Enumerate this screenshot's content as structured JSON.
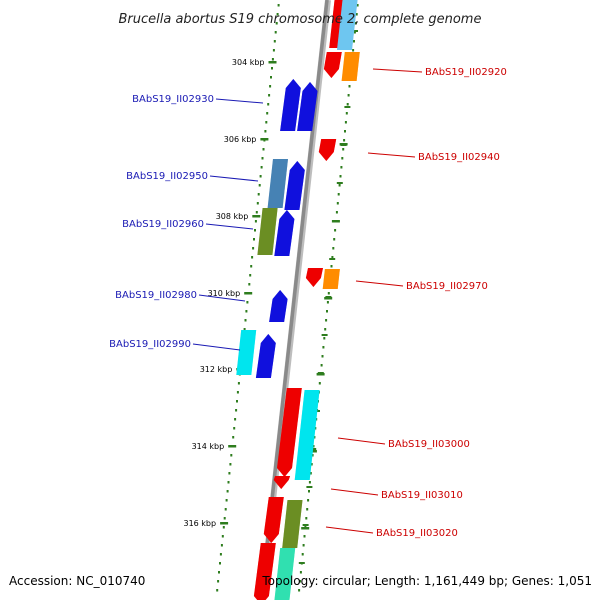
{
  "title": "Brucella abortus S19 chromosome 2, complete genome",
  "footer": {
    "accession": "Accession: NC_010740",
    "topology": "Topology: circular; Length: 1,161,449 bp; Genes: 1,051"
  },
  "colors": {
    "backbone": "#8a8a8a",
    "dots": "#2e7d1e",
    "forward_label": "#1a1ab4",
    "reverse_label": "#cc0000",
    "red": "#ee0000",
    "blue": "#1010dd",
    "orange": "#ff8c00",
    "cyan": "#00e5ee",
    "steel": "#4682b4",
    "olive": "#6b8e23",
    "skyblue": "#6ec6f0",
    "mint": "#30e0b0"
  },
  "ticks": [
    {
      "label": "304 kbp"
    },
    {
      "label": "306 kbp"
    },
    {
      "label": "308 kbp"
    },
    {
      "label": "310 kbp"
    },
    {
      "label": "312 kbp"
    },
    {
      "label": "314 kbp"
    },
    {
      "label": "316 kbp"
    }
  ],
  "gene_labels": [
    {
      "id": "BAbS19_II02920",
      "strand": "reverse"
    },
    {
      "id": "BAbS19_II02930",
      "strand": "forward"
    },
    {
      "id": "BAbS19_II02940",
      "strand": "reverse"
    },
    {
      "id": "BAbS19_II02950",
      "strand": "forward"
    },
    {
      "id": "BAbS19_II02960",
      "strand": "forward"
    },
    {
      "id": "BAbS19_II02970",
      "strand": "reverse"
    },
    {
      "id": "BAbS19_II02980",
      "strand": "forward"
    },
    {
      "id": "BAbS19_II02990",
      "strand": "forward"
    },
    {
      "id": "BAbS19_II03000",
      "strand": "reverse"
    },
    {
      "id": "BAbS19_II03010",
      "strand": "reverse"
    },
    {
      "id": "BAbS19_II03020",
      "strand": "reverse"
    }
  ]
}
